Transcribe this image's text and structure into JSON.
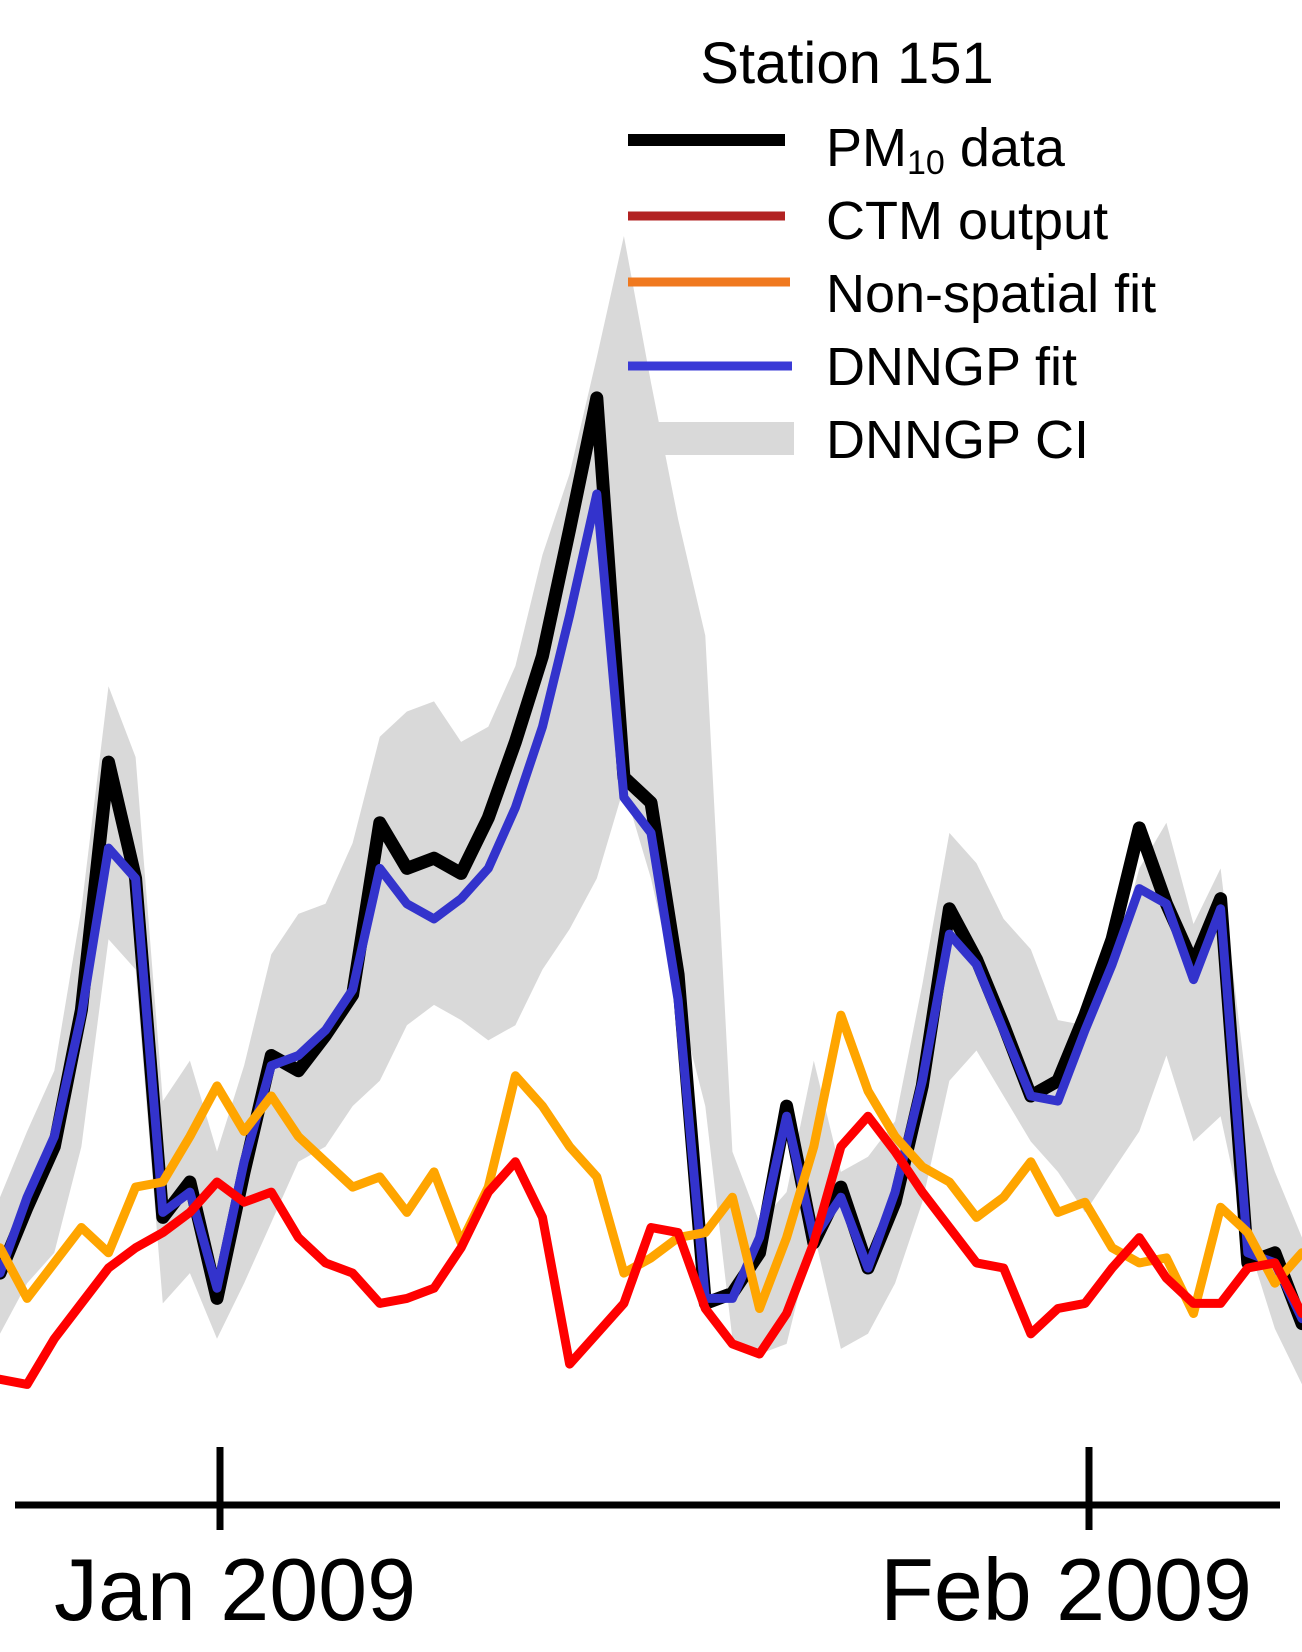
{
  "chart_data": {
    "type": "line",
    "title": "Station 151",
    "xlabel": "",
    "ylabel": "",
    "x_ticks": [
      "Jan 2009",
      "Feb 2009"
    ],
    "x": [
      "2008-12-25",
      "2008-12-26",
      "2008-12-27",
      "2008-12-28",
      "2008-12-29",
      "2008-12-30",
      "2008-12-31",
      "2009-01-01",
      "2009-01-02",
      "2009-01-03",
      "2009-01-04",
      "2009-01-05",
      "2009-01-06",
      "2009-01-07",
      "2009-01-08",
      "2009-01-09",
      "2009-01-10",
      "2009-01-11",
      "2009-01-12",
      "2009-01-13",
      "2009-01-14",
      "2009-01-15",
      "2009-01-16",
      "2009-01-17",
      "2009-01-18",
      "2009-01-19",
      "2009-01-20",
      "2009-01-21",
      "2009-01-22",
      "2009-01-23",
      "2009-01-24",
      "2009-01-25",
      "2009-01-26",
      "2009-01-27",
      "2009-01-28",
      "2009-01-29",
      "2009-01-30",
      "2009-01-31",
      "2009-02-01",
      "2009-02-02",
      "2009-02-03",
      "2009-02-04",
      "2009-02-05",
      "2009-02-06",
      "2009-02-07",
      "2009-02-08",
      "2009-02-09",
      "2009-02-10",
      "2009-02-11"
    ],
    "legend_position": "top-right",
    "grid": false,
    "series": [
      {
        "name": "DNNGP CI",
        "color": "#d9d9d9",
        "kind": "band",
        "lower": [
          0.06,
          0.16,
          0.22,
          0.43,
          0.84,
          0.78,
          0.12,
          0.18,
          0.05,
          0.16,
          0.28,
          0.4,
          0.43,
          0.51,
          0.56,
          0.67,
          0.71,
          0.68,
          0.64,
          0.67,
          0.78,
          0.86,
          0.96,
          1.14,
          0.96,
          0.72,
          0.51,
          0.05,
          0.02,
          0.04,
          0.26,
          0.03,
          0.06,
          0.16,
          0.32,
          0.56,
          0.62,
          0.53,
          0.44,
          0.38,
          0.3,
          0.38,
          0.46,
          0.61,
          0.44,
          0.49,
          0.24,
          0.07,
          -0.04
        ],
        "upper": [
          0.33,
          0.46,
          0.58,
          0.9,
          1.34,
          1.2,
          0.52,
          0.6,
          0.42,
          0.59,
          0.81,
          0.89,
          0.91,
          1.03,
          1.24,
          1.29,
          1.31,
          1.23,
          1.26,
          1.38,
          1.6,
          1.76,
          1.99,
          2.23,
          1.94,
          1.67,
          1.44,
          0.42,
          0.28,
          0.34,
          0.6,
          0.38,
          0.41,
          0.48,
          0.75,
          1.05,
          0.99,
          0.88,
          0.82,
          0.68,
          0.67,
          0.78,
          0.98,
          1.07,
          0.87,
          0.98,
          0.53,
          0.38,
          0.25
        ]
      },
      {
        "name": "PM10 data",
        "legend_label": "PM",
        "legend_sub": "10",
        "legend_rest": " data",
        "color": "#000000",
        "width": 13,
        "values": [
          0.18,
          0.31,
          0.43,
          0.7,
          1.19,
          0.96,
          0.29,
          0.36,
          0.13,
          0.38,
          0.61,
          0.58,
          0.65,
          0.73,
          1.07,
          0.98,
          1.0,
          0.97,
          1.08,
          1.23,
          1.4,
          1.65,
          1.91,
          1.16,
          1.11,
          0.77,
          0.12,
          0.14,
          0.22,
          0.51,
          0.24,
          0.35,
          0.19,
          0.32,
          0.55,
          0.9,
          0.8,
          0.67,
          0.53,
          0.56,
          0.69,
          0.84,
          1.06,
          0.91,
          0.79,
          0.92,
          0.2,
          0.22,
          0.08
        ]
      },
      {
        "name": "DNNGP fit",
        "color": "#3333cc",
        "width": 9,
        "values": [
          0.18,
          0.33,
          0.45,
          0.69,
          1.02,
          0.96,
          0.3,
          0.34,
          0.15,
          0.4,
          0.59,
          0.61,
          0.66,
          0.74,
          0.98,
          0.91,
          0.88,
          0.92,
          0.98,
          1.1,
          1.26,
          1.48,
          1.72,
          1.12,
          1.05,
          0.72,
          0.13,
          0.13,
          0.25,
          0.49,
          0.25,
          0.33,
          0.19,
          0.34,
          0.56,
          0.85,
          0.79,
          0.66,
          0.53,
          0.52,
          0.66,
          0.79,
          0.94,
          0.91,
          0.76,
          0.9,
          0.22,
          0.2,
          0.09
        ]
      },
      {
        "name": "Non-spatial fit",
        "color": "#ffa500",
        "legend_color": "#f0791f",
        "width": 9,
        "values": [
          0.23,
          0.13,
          0.2,
          0.27,
          0.22,
          0.35,
          0.36,
          0.45,
          0.55,
          0.46,
          0.53,
          0.45,
          0.4,
          0.35,
          0.37,
          0.3,
          0.38,
          0.24,
          0.35,
          0.57,
          0.51,
          0.43,
          0.37,
          0.18,
          0.21,
          0.25,
          0.26,
          0.33,
          0.11,
          0.25,
          0.43,
          0.69,
          0.54,
          0.45,
          0.39,
          0.36,
          0.29,
          0.33,
          0.4,
          0.3,
          0.32,
          0.23,
          0.2,
          0.21,
          0.1,
          0.31,
          0.26,
          0.16,
          0.22
        ]
      },
      {
        "name": "CTM output",
        "color": "#ff0000",
        "legend_color": "#b22222",
        "width": 9,
        "values": [
          -0.03,
          -0.04,
          0.05,
          0.12,
          0.19,
          0.23,
          0.26,
          0.3,
          0.36,
          0.32,
          0.34,
          0.25,
          0.2,
          0.18,
          0.12,
          0.13,
          0.15,
          0.23,
          0.34,
          0.4,
          0.29,
          0.0,
          0.06,
          0.12,
          0.27,
          0.26,
          0.11,
          0.04,
          0.02,
          0.1,
          0.24,
          0.43,
          0.49,
          0.42,
          0.34,
          0.27,
          0.2,
          0.19,
          0.06,
          0.11,
          0.12,
          0.19,
          0.25,
          0.17,
          0.12,
          0.12,
          0.19,
          0.2,
          0.1
        ]
      }
    ],
    "legend_order": [
      "PM10 data",
      "CTM output",
      "Non-spatial fit",
      "DNNGP fit",
      "DNNGP CI"
    ],
    "ylim": [
      -0.15,
      2.4
    ]
  }
}
